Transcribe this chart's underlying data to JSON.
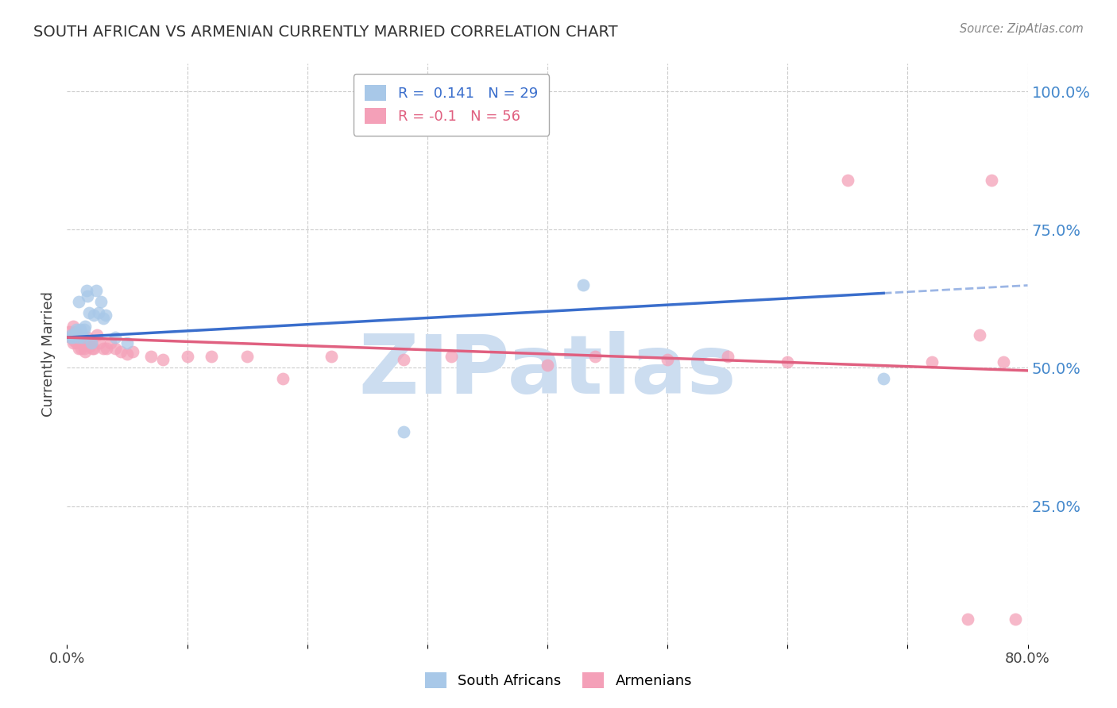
{
  "title": "SOUTH AFRICAN VS ARMENIAN CURRENTLY MARRIED CORRELATION CHART",
  "source": "Source: ZipAtlas.com",
  "ylabel": "Currently Married",
  "xlabel": "",
  "xlim": [
    0.0,
    0.8
  ],
  "ylim": [
    0.0,
    1.05
  ],
  "xticks": [
    0.0,
    0.1,
    0.2,
    0.3,
    0.4,
    0.5,
    0.6,
    0.7,
    0.8
  ],
  "xtick_labels": [
    "0.0%",
    "",
    "",
    "",
    "",
    "",
    "",
    "",
    "80.0%"
  ],
  "yticks_right": [
    0.25,
    0.5,
    0.75,
    1.0
  ],
  "ytick_right_labels": [
    "25.0%",
    "50.0%",
    "75.0%",
    "100.0%"
  ],
  "blue_label": "South Africans",
  "pink_label": "Armenians",
  "blue_R": 0.141,
  "blue_N": 29,
  "pink_R": -0.1,
  "pink_N": 56,
  "blue_color": "#a8c8e8",
  "pink_color": "#f4a0b8",
  "trend_blue": "#3a6ecc",
  "trend_pink": "#e06080",
  "grid_color": "#cccccc",
  "watermark": "ZIPatlas",
  "watermark_color": "#ccddf0",
  "title_color": "#333333",
  "right_axis_color": "#4488cc",
  "south_african_x": [
    0.003,
    0.004,
    0.005,
    0.006,
    0.007,
    0.008,
    0.009,
    0.01,
    0.01,
    0.011,
    0.012,
    0.013,
    0.014,
    0.015,
    0.016,
    0.017,
    0.018,
    0.02,
    0.022,
    0.024,
    0.026,
    0.028,
    0.03,
    0.032,
    0.04,
    0.05,
    0.28,
    0.43,
    0.68
  ],
  "south_african_y": [
    0.555,
    0.56,
    0.555,
    0.56,
    0.56,
    0.57,
    0.565,
    0.555,
    0.62,
    0.57,
    0.565,
    0.555,
    0.57,
    0.575,
    0.64,
    0.63,
    0.6,
    0.545,
    0.595,
    0.64,
    0.6,
    0.62,
    0.59,
    0.595,
    0.555,
    0.545,
    0.385,
    0.65,
    0.48
  ],
  "armenian_x": [
    0.002,
    0.003,
    0.004,
    0.005,
    0.005,
    0.006,
    0.007,
    0.007,
    0.008,
    0.008,
    0.009,
    0.01,
    0.01,
    0.011,
    0.012,
    0.013,
    0.013,
    0.014,
    0.015,
    0.016,
    0.017,
    0.018,
    0.019,
    0.02,
    0.021,
    0.022,
    0.025,
    0.027,
    0.03,
    0.033,
    0.036,
    0.04,
    0.045,
    0.05,
    0.055,
    0.07,
    0.08,
    0.1,
    0.12,
    0.15,
    0.18,
    0.22,
    0.28,
    0.32,
    0.4,
    0.44,
    0.5,
    0.55,
    0.6,
    0.65,
    0.72,
    0.75,
    0.76,
    0.77,
    0.78,
    0.79
  ],
  "armenian_y": [
    0.565,
    0.555,
    0.56,
    0.545,
    0.575,
    0.55,
    0.555,
    0.565,
    0.545,
    0.56,
    0.55,
    0.535,
    0.555,
    0.545,
    0.535,
    0.545,
    0.555,
    0.535,
    0.53,
    0.545,
    0.555,
    0.545,
    0.54,
    0.545,
    0.535,
    0.535,
    0.56,
    0.545,
    0.535,
    0.535,
    0.545,
    0.535,
    0.53,
    0.525,
    0.53,
    0.52,
    0.515,
    0.52,
    0.52,
    0.52,
    0.48,
    0.52,
    0.515,
    0.52,
    0.505,
    0.52,
    0.515,
    0.52,
    0.51,
    0.84,
    0.51,
    0.045,
    0.56,
    0.84,
    0.51,
    0.045
  ]
}
